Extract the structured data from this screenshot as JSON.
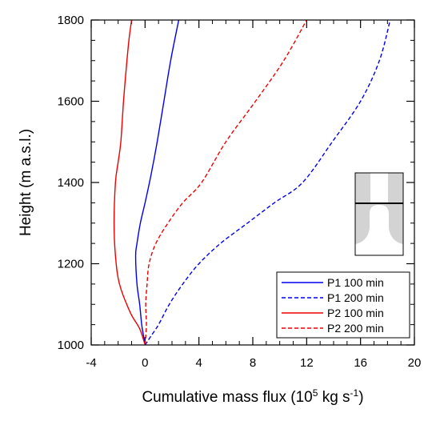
{
  "chart_data": {
    "type": "line",
    "xlabel": "Cumulative mass flux (10",
    "xlabel_exponent": "5",
    "xlabel_suffix": " kg s",
    "xlabel_suffix_exponent": "-1",
    "xlabel_close": ")",
    "ylabel": "Height (m a.s.l.)",
    "xlim": [
      -4,
      20
    ],
    "ylim": [
      1000,
      1800
    ],
    "xticks": [
      -4,
      0,
      4,
      8,
      12,
      16,
      20
    ],
    "yticks": [
      1000,
      1200,
      1400,
      1600,
      1800
    ],
    "x_minor_step": 1,
    "y_minor_step": 50,
    "legend_position": "bottom-right",
    "series": [
      {
        "name": "P1 100 min",
        "color": "#0000ee",
        "dash": "solid",
        "x": [
          0.0,
          -0.1,
          -0.25,
          -0.4,
          -0.6,
          -0.7,
          -0.6,
          -0.35,
          0.0,
          0.45,
          0.9,
          1.4,
          1.9,
          2.5
        ],
        "y": [
          1000,
          1020,
          1050,
          1100,
          1150,
          1220,
          1250,
          1300,
          1350,
          1420,
          1500,
          1600,
          1700,
          1800
        ]
      },
      {
        "name": "P1 200 min",
        "color": "#0000ee",
        "dash": "dashed",
        "x": [
          0.0,
          0.4,
          1.0,
          1.8,
          2.8,
          4.0,
          5.6,
          7.6,
          9.6,
          11.7,
          13.9,
          16.0,
          17.4,
          18.2
        ],
        "y": [
          1000,
          1020,
          1050,
          1100,
          1150,
          1200,
          1250,
          1300,
          1350,
          1400,
          1500,
          1600,
          1700,
          1800
        ]
      },
      {
        "name": "P2 100 min",
        "color": "#ee0000",
        "dash": "solid",
        "x": [
          0.0,
          -0.4,
          -1.1,
          -1.9,
          -2.2,
          -2.3,
          -2.2,
          -2.0,
          -1.8,
          -1.6,
          -1.4,
          -1.2,
          -1.0
        ],
        "y": [
          1000,
          1040,
          1080,
          1150,
          1220,
          1300,
          1400,
          1450,
          1500,
          1600,
          1680,
          1750,
          1800
        ]
      },
      {
        "name": "P2 200 min",
        "color": "#ee0000",
        "dash": "dashed",
        "x": [
          0.0,
          0.1,
          0.05,
          0.15,
          0.3,
          0.8,
          1.7,
          2.8,
          4.2,
          6.0,
          8.2,
          10.3,
          12.0
        ],
        "y": [
          1000,
          1050,
          1100,
          1150,
          1200,
          1250,
          1300,
          1350,
          1400,
          1500,
          1600,
          1700,
          1800
        ]
      }
    ]
  }
}
